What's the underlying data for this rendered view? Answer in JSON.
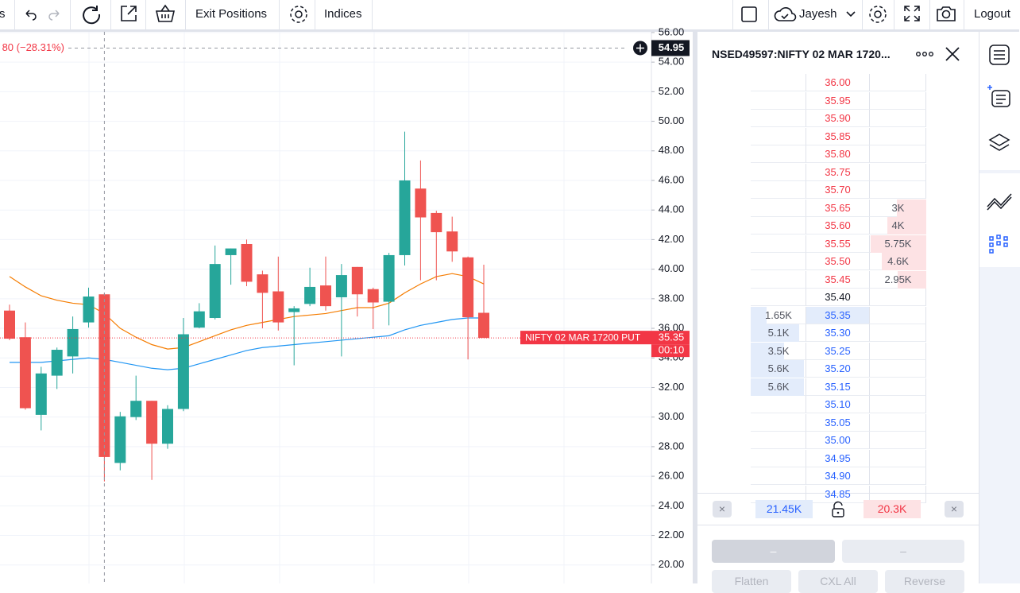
{
  "toolbar": {
    "cut": "s",
    "exit": "Exit Positions",
    "indices": "Indices",
    "user": "Jayesh",
    "logout": "Logout"
  },
  "chart_data": {
    "type": "candlestick",
    "up_color": "#26a69a",
    "down_color": "#ef5350",
    "ylim": [
      18.75,
      56.05
    ],
    "yticks": [
      {
        "value": 56,
        "label": "56.00"
      },
      {
        "value": 54,
        "label": "54.00"
      },
      {
        "value": 52,
        "label": "52.00"
      },
      {
        "value": 50,
        "label": "50.00"
      },
      {
        "value": 48,
        "label": "48.00"
      },
      {
        "value": 46,
        "label": "46.00"
      },
      {
        "value": 44,
        "label": "44.00"
      },
      {
        "value": 42,
        "label": "42.00"
      },
      {
        "value": 40,
        "label": "40.00"
      },
      {
        "value": 38,
        "label": "38.00"
      },
      {
        "value": 36,
        "label": "36.00"
      },
      {
        "value": 34,
        "label": "34.00"
      },
      {
        "value": 32,
        "label": "32.00"
      },
      {
        "value": 30,
        "label": "30.00"
      },
      {
        "value": 28,
        "label": "28.00"
      },
      {
        "value": 26,
        "label": "26.00"
      },
      {
        "value": 24,
        "label": "24.00"
      },
      {
        "value": 22,
        "label": "22.00"
      },
      {
        "value": 20,
        "label": "20.00"
      }
    ],
    "open": [
      37.2,
      35.4,
      30.15,
      32.8,
      34.1,
      36.4,
      38.3,
      26.9,
      30.0,
      31.1,
      28.2,
      30.55,
      36.05,
      36.7,
      40.95,
      41.7,
      39.65,
      38.5,
      37.1,
      37.65,
      38.9,
      38.1,
      40.15,
      38.65,
      37.8,
      40.95,
      45.45,
      43.8,
      42.55,
      40.8,
      37.05
    ],
    "high": [
      37.6,
      36.4,
      33.4,
      34.7,
      36.8,
      38.75,
      38.4,
      30.35,
      32.8,
      31.1,
      30.8,
      36.7,
      37.7,
      41.6,
      41.4,
      42.0,
      39.9,
      40.85,
      37.5,
      40.1,
      40.85,
      40.35,
      40.15,
      38.75,
      41.1,
      49.3,
      47.35,
      43.95,
      43.55,
      40.85,
      40.3
    ],
    "low": [
      35.2,
      30.5,
      29.1,
      31.9,
      32.95,
      36.05,
      25.65,
      26.4,
      29.8,
      25.75,
      27.85,
      30.4,
      36.0,
      36.6,
      38.95,
      38.85,
      36.0,
      35.85,
      33.5,
      37.5,
      37.2,
      34.1,
      36.8,
      35.95,
      36.2,
      40.25,
      39.25,
      39.25,
      40.5,
      33.9,
      35.35
    ],
    "close": [
      35.3,
      30.6,
      32.95,
      34.55,
      35.95,
      38.15,
      27.3,
      30.05,
      31.1,
      28.2,
      30.55,
      35.6,
      37.15,
      40.35,
      41.4,
      39.15,
      38.4,
      36.4,
      37.35,
      38.8,
      37.5,
      39.6,
      38.3,
      37.75,
      40.95,
      46.0,
      43.5,
      42.5,
      41.2,
      36.75,
      35.35
    ],
    "lines": [
      {
        "color": "#f57c00",
        "values": [
          39.5,
          38.8,
          38.2,
          37.9,
          37.7,
          37.6,
          37.0,
          36.0,
          35.4,
          34.9,
          34.6,
          34.7,
          35.1,
          35.5,
          35.9,
          36.2,
          36.4,
          36.6,
          36.8,
          36.9,
          37.0,
          37.2,
          37.4,
          37.4,
          37.7,
          38.4,
          39.0,
          39.5,
          39.7,
          39.5,
          39.0
        ]
      },
      {
        "color": "#2196f3",
        "values": [
          33.7,
          33.7,
          33.7,
          33.8,
          33.9,
          34.0,
          33.9,
          33.7,
          33.5,
          33.3,
          33.2,
          33.3,
          33.6,
          33.9,
          34.2,
          34.5,
          34.7,
          34.8,
          34.9,
          35.0,
          35.1,
          35.2,
          35.3,
          35.4,
          35.5,
          35.9,
          36.2,
          36.4,
          36.6,
          36.7,
          36.7
        ]
      }
    ],
    "crosshair": {
      "value": 54.95,
      "change": "80 (−28.31%)"
    },
    "last": {
      "value": 35.35,
      "label": "NIFTY 02 MAR 17200 PUT",
      "countdown": "00:10",
      "color": "#f23645"
    }
  },
  "ladder": {
    "title": "NSED49597:NIFTY 02 MAR 1720...",
    "rows": [
      {
        "price": "36.00",
        "color": "#f23645"
      },
      {
        "price": "35.95",
        "color": "#f23645"
      },
      {
        "price": "35.90",
        "color": "#f23645"
      },
      {
        "price": "35.85",
        "color": "#f23645"
      },
      {
        "price": "35.80",
        "color": "#f23645"
      },
      {
        "price": "35.75",
        "color": "#f23645"
      },
      {
        "price": "35.70",
        "color": "#f23645"
      },
      {
        "price": "35.65",
        "color": "#f23645",
        "ask": {
          "value": 3000,
          "label": "3K"
        }
      },
      {
        "price": "35.60",
        "color": "#f23645",
        "ask": {
          "value": 4000,
          "label": "4K"
        }
      },
      {
        "price": "35.55",
        "color": "#f23645",
        "ask": {
          "value": 5750,
          "label": "5.75K"
        }
      },
      {
        "price": "35.50",
        "color": "#f23645",
        "ask": {
          "value": 4600,
          "label": "4.6K"
        }
      },
      {
        "price": "35.45",
        "color": "#f23645",
        "ask": {
          "value": 2950,
          "label": "2.95K"
        }
      },
      {
        "price": "35.40",
        "color": "#131722"
      },
      {
        "price": "35.35",
        "color": "#2962ff",
        "highlight": true,
        "bid": {
          "value": 1650,
          "label": "1.65K"
        }
      },
      {
        "price": "35.30",
        "color": "#2962ff",
        "bid": {
          "value": 5100,
          "label": "5.1K"
        }
      },
      {
        "price": "35.25",
        "color": "#2962ff",
        "bid": {
          "value": 3500,
          "label": "3.5K"
        }
      },
      {
        "price": "35.20",
        "color": "#2962ff",
        "bid": {
          "value": 5600,
          "label": "5.6K"
        }
      },
      {
        "price": "35.15",
        "color": "#2962ff",
        "bid": {
          "value": 5600,
          "label": "5.6K"
        }
      },
      {
        "price": "35.10",
        "color": "#2962ff"
      },
      {
        "price": "35.05",
        "color": "#2962ff"
      },
      {
        "price": "35.00",
        "color": "#2962ff"
      },
      {
        "price": "34.95",
        "color": "#2962ff"
      },
      {
        "price": "34.90",
        "color": "#2962ff"
      },
      {
        "price": "34.85",
        "color": "#2962ff"
      }
    ],
    "bid_total": "21.45K",
    "ask_total": "20.3K",
    "cancel": "×",
    "buy": "–",
    "sell": "–",
    "flatten": "Flatten",
    "cxl": "CXL All",
    "reverse": "Reverse"
  }
}
